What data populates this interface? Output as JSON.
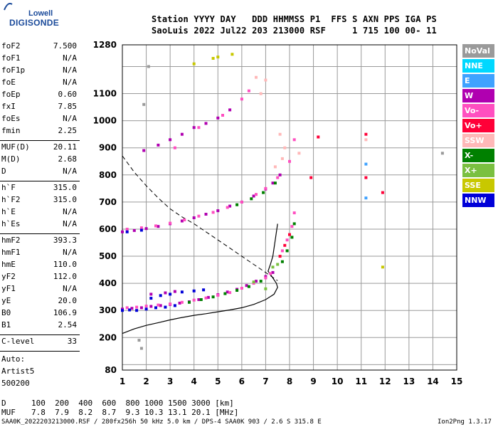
{
  "logo": {
    "line1": "Lowell",
    "line2": "DIGISONDE"
  },
  "header": {
    "line1": "Station YYYY DAY   DDD HHMMSS P1  FFS S AXN PPS IGA PS",
    "line2": "SaoLuis 2022 Jul22 203 213000 RSF     1 715 100 00- 11"
  },
  "params": [
    {
      "label": "foF2",
      "value": "7.500"
    },
    {
      "label": "foF1",
      "value": "N/A"
    },
    {
      "label": "foF1p",
      "value": "N/A"
    },
    {
      "label": "foE",
      "value": "N/A"
    },
    {
      "label": "foEp",
      "value": "0.60"
    },
    {
      "label": "fxI",
      "value": "7.85"
    },
    {
      "label": "foEs",
      "value": "N/A"
    },
    {
      "label": "fmin",
      "value": "2.25"
    },
    {
      "label": "MUF(D)",
      "value": "20.11"
    },
    {
      "label": "M(D)",
      "value": "2.68"
    },
    {
      "label": "D",
      "value": "N/A"
    },
    {
      "label": "h`F",
      "value": "315.0"
    },
    {
      "label": "h`F2",
      "value": "315.0"
    },
    {
      "label": "h`E",
      "value": "N/A"
    },
    {
      "label": "h`Es",
      "value": "N/A"
    },
    {
      "label": "hmF2",
      "value": "393.3"
    },
    {
      "label": "hmF1",
      "value": "N/A"
    },
    {
      "label": "hmE",
      "value": "110.0"
    },
    {
      "label": "yF2",
      "value": "112.0"
    },
    {
      "label": "yF1",
      "value": "N/A"
    },
    {
      "label": "yE",
      "value": "20.0"
    },
    {
      "label": "B0",
      "value": "106.9"
    },
    {
      "label": "B1",
      "value": "2.54"
    },
    {
      "label": "C-level",
      "value": "33"
    }
  ],
  "scaling": {
    "line1": "Auto:",
    "line2": "Artist5",
    "line3": "500200"
  },
  "muf_table": {
    "d_label": "D",
    "d_values": "100  200  400  600  800 1000 1500 3000 [km]",
    "muf_label": "MUF",
    "muf_values": "7.8  7.9  8.2  8.7  9.3 10.3 13.1 20.1 [MHz]"
  },
  "footer": {
    "left": "SAA0K_2022203213000.RSF / 280fx256h 50 kHz 5.0 km / DPS-4 SAA0K 903 / 2.6 S 315.8 E",
    "right": "Ion2Png 1.3.17"
  },
  "legend": [
    {
      "label": "NoVal",
      "color": "#9a9a9a"
    },
    {
      "label": "NNE",
      "color": "#00d8ff"
    },
    {
      "label": "E",
      "color": "#3fa2ff"
    },
    {
      "label": "W",
      "color": "#b000b0"
    },
    {
      "label": "Vo-",
      "color": "#ff4fc0"
    },
    {
      "label": "Vo+",
      "color": "#ff0038"
    },
    {
      "label": "SSW",
      "color": "#ffb8b8"
    },
    {
      "label": "X-",
      "color": "#008000"
    },
    {
      "label": "X+",
      "color": "#7ac040"
    },
    {
      "label": "SSE",
      "color": "#c8c800"
    },
    {
      "label": "NNW",
      "color": "#0000d8"
    }
  ],
  "chart_data": {
    "type": "scatter",
    "xlim": [
      1,
      15
    ],
    "ylim": [
      80,
      1280
    ],
    "xticks": [
      1,
      2,
      3,
      4,
      5,
      6,
      7,
      8,
      9,
      10,
      11,
      12,
      13,
      14,
      15
    ],
    "yticks": [
      80,
      200,
      300,
      400,
      500,
      600,
      700,
      800,
      900,
      1000,
      1100,
      1280
    ],
    "grid": true,
    "series": [
      {
        "name": "W",
        "color": "#b000b0",
        "points": [
          [
            1.0,
            305
          ],
          [
            1.4,
            308
          ],
          [
            1.8,
            310
          ],
          [
            2.2,
            315
          ],
          [
            2.6,
            318
          ],
          [
            3.0,
            322
          ],
          [
            3.4,
            327
          ],
          [
            3.8,
            332
          ],
          [
            4.2,
            340
          ],
          [
            4.6,
            348
          ],
          [
            5.0,
            358
          ],
          [
            5.4,
            368
          ],
          [
            5.8,
            378
          ],
          [
            6.2,
            392
          ],
          [
            6.6,
            408
          ],
          [
            7.0,
            425
          ],
          [
            7.3,
            440
          ],
          [
            1.0,
            590
          ],
          [
            1.5,
            595
          ],
          [
            2.0,
            602
          ],
          [
            2.5,
            610
          ],
          [
            3.0,
            620
          ],
          [
            3.5,
            630
          ],
          [
            4.0,
            642
          ],
          [
            4.5,
            655
          ],
          [
            5.0,
            668
          ],
          [
            5.5,
            685
          ],
          [
            6.0,
            700
          ],
          [
            6.5,
            722
          ],
          [
            7.0,
            748
          ],
          [
            7.3,
            770
          ],
          [
            7.6,
            800
          ],
          [
            1.9,
            890
          ],
          [
            2.5,
            910
          ],
          [
            3.0,
            930
          ],
          [
            3.5,
            950
          ],
          [
            4.0,
            975
          ],
          [
            4.5,
            990
          ],
          [
            5.0,
            1010
          ],
          [
            5.5,
            1040
          ],
          [
            2.2,
            360
          ],
          [
            2.8,
            365
          ],
          [
            3.2,
            370
          ]
        ]
      },
      {
        "name": "Vo-",
        "color": "#ff4fc0",
        "points": [
          [
            1.2,
            310
          ],
          [
            1.6,
            312
          ],
          [
            2.0,
            316
          ],
          [
            2.5,
            320
          ],
          [
            3.0,
            324
          ],
          [
            3.5,
            330
          ],
          [
            4.0,
            338
          ],
          [
            4.5,
            346
          ],
          [
            5.0,
            356
          ],
          [
            5.5,
            366
          ],
          [
            6.0,
            382
          ],
          [
            6.5,
            400
          ],
          [
            7.0,
            420
          ],
          [
            7.2,
            436
          ],
          [
            7.7,
            520
          ],
          [
            7.9,
            560
          ],
          [
            8.1,
            610
          ],
          [
            8.2,
            660
          ],
          [
            1.2,
            600
          ],
          [
            1.8,
            605
          ],
          [
            2.4,
            612
          ],
          [
            3.0,
            622
          ],
          [
            3.6,
            634
          ],
          [
            4.2,
            648
          ],
          [
            4.8,
            662
          ],
          [
            5.4,
            680
          ],
          [
            6.0,
            700
          ],
          [
            6.6,
            728
          ],
          [
            7.0,
            750
          ],
          [
            7.5,
            790
          ],
          [
            8.0,
            850
          ],
          [
            8.2,
            930
          ],
          [
            3.2,
            900
          ],
          [
            4.2,
            975
          ],
          [
            5.2,
            1020
          ],
          [
            6.0,
            1080
          ],
          [
            6.3,
            1110
          ]
        ]
      },
      {
        "name": "Vo+",
        "color": "#ff0038",
        "points": [
          [
            7.6,
            500
          ],
          [
            7.8,
            540
          ],
          [
            8.0,
            580
          ],
          [
            11.2,
            950
          ],
          [
            11.2,
            790
          ],
          [
            11.9,
            735
          ],
          [
            9.2,
            940
          ],
          [
            8.9,
            790
          ]
        ]
      },
      {
        "name": "X-",
        "color": "#008000",
        "points": [
          [
            3.8,
            330
          ],
          [
            4.3,
            340
          ],
          [
            4.8,
            350
          ],
          [
            5.3,
            362
          ],
          [
            5.8,
            374
          ],
          [
            6.3,
            388
          ],
          [
            6.8,
            408
          ],
          [
            7.7,
            480
          ],
          [
            7.9,
            520
          ],
          [
            8.1,
            570
          ],
          [
            8.2,
            620
          ],
          [
            5.8,
            690
          ],
          [
            6.4,
            712
          ],
          [
            6.9,
            735
          ],
          [
            7.4,
            770
          ]
        ]
      },
      {
        "name": "NNW",
        "color": "#0000d8",
        "points": [
          [
            1.0,
            300
          ],
          [
            1.3,
            302
          ],
          [
            1.6,
            300
          ],
          [
            2.0,
            305
          ],
          [
            2.4,
            310
          ],
          [
            2.8,
            312
          ],
          [
            3.2,
            318
          ],
          [
            2.2,
            345
          ],
          [
            2.6,
            355
          ],
          [
            3.0,
            360
          ],
          [
            3.5,
            368
          ],
          [
            4.0,
            372
          ],
          [
            4.4,
            376
          ],
          [
            1.2,
            590
          ],
          [
            1.8,
            596
          ]
        ]
      },
      {
        "name": "SSW",
        "color": "#ffb8b8",
        "points": [
          [
            7.4,
            830
          ],
          [
            7.7,
            860
          ],
          [
            7.8,
            900
          ],
          [
            7.6,
            950
          ],
          [
            6.8,
            1100
          ],
          [
            6.6,
            1160
          ],
          [
            7.0,
            1150
          ],
          [
            8.4,
            880
          ],
          [
            11.2,
            930
          ]
        ]
      },
      {
        "name": "SSE",
        "color": "#c8c800",
        "points": [
          [
            4.8,
            1230
          ],
          [
            5.6,
            1245
          ],
          [
            5.0,
            1235
          ],
          [
            4.0,
            1210
          ],
          [
            11.9,
            460
          ]
        ]
      },
      {
        "name": "X+",
        "color": "#7ac040",
        "points": [
          [
            7.0,
            380
          ],
          [
            7.3,
            460
          ],
          [
            7.5,
            470
          ],
          [
            6.5,
            405
          ]
        ]
      },
      {
        "name": "E",
        "color": "#3fa2ff",
        "points": [
          [
            11.2,
            840
          ],
          [
            11.2,
            715
          ]
        ]
      },
      {
        "name": "NoVal",
        "color": "#9a9a9a",
        "points": [
          [
            1.7,
            190
          ],
          [
            1.8,
            160
          ],
          [
            2.1,
            1200
          ],
          [
            1.9,
            1060
          ],
          [
            14.4,
            880
          ]
        ]
      }
    ],
    "profile_line": [
      [
        1.0,
        215
      ],
      [
        1.5,
        232
      ],
      [
        2.0,
        245
      ],
      [
        2.5,
        255
      ],
      [
        3.0,
        265
      ],
      [
        3.5,
        274
      ],
      [
        4.0,
        282
      ],
      [
        4.5,
        288
      ],
      [
        5.0,
        295
      ],
      [
        5.5,
        302
      ],
      [
        6.0,
        310
      ],
      [
        6.5,
        322
      ],
      [
        7.0,
        340
      ],
      [
        7.35,
        360
      ],
      [
        7.5,
        385
      ],
      [
        7.45,
        400
      ],
      [
        7.3,
        420
      ],
      [
        7.1,
        445
      ],
      [
        7.2,
        470
      ],
      [
        7.3,
        500
      ],
      [
        7.4,
        560
      ],
      [
        7.5,
        620
      ]
    ],
    "muf_curve": [
      [
        1.0,
        870
      ],
      [
        1.5,
        810
      ],
      [
        2.0,
        760
      ],
      [
        2.5,
        715
      ],
      [
        3.0,
        675
      ],
      [
        3.5,
        645
      ],
      [
        4.0,
        620
      ],
      [
        4.5,
        590
      ],
      [
        5.0,
        560
      ],
      [
        5.5,
        530
      ],
      [
        6.0,
        500
      ],
      [
        6.5,
        470
      ],
      [
        7.0,
        440
      ],
      [
        7.5,
        410
      ]
    ]
  }
}
